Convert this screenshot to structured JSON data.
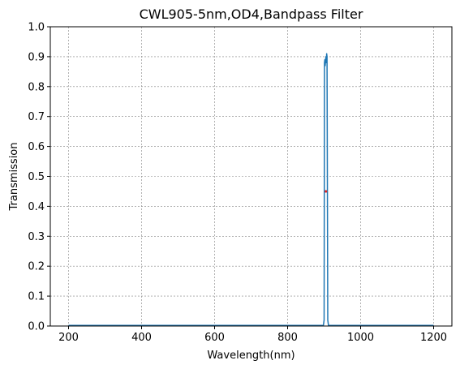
{
  "chart_data": {
    "type": "line",
    "title": "CWL905-5nm,OD4,Bandpass Filter",
    "xlabel": "Wavelength(nm)",
    "ylabel": "Transmission",
    "xlim": [
      150,
      1250
    ],
    "ylim": [
      0,
      1.0
    ],
    "xticks": [
      200,
      400,
      600,
      800,
      1000,
      1200
    ],
    "xtick_labels": [
      "200",
      "400",
      "600",
      "800",
      "1000",
      "1200"
    ],
    "yticks": [
      0,
      0.1,
      0.2,
      0.3,
      0.4,
      0.5,
      0.6,
      0.7,
      0.8,
      0.9,
      1.0
    ],
    "ytick_labels": [
      "0.0",
      "0.1",
      "0.2",
      "0.3",
      "0.4",
      "0.5",
      "0.6",
      "0.7",
      "0.8",
      "0.9",
      "1.0"
    ],
    "grid": true,
    "series": [
      {
        "color": "#1f77b4",
        "x": [
          200,
          898,
          900,
          901,
          902,
          903,
          904,
          905,
          906,
          907,
          908,
          910,
          912,
          1200
        ],
        "y": [
          0.002,
          0.002,
          0.02,
          0.88,
          0.89,
          0.87,
          0.89,
          0.9,
          0.88,
          0.91,
          0.9,
          0.02,
          0.002,
          0.002
        ]
      }
    ],
    "markers": [
      {
        "x": 905,
        "y": 0.45,
        "color": "#d62728"
      }
    ]
  }
}
